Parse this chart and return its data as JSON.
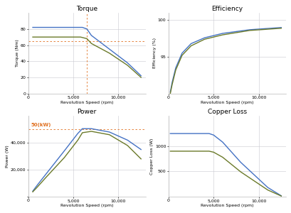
{
  "blue_color": "#4472C4",
  "green_color": "#6B7A2A",
  "orange_color": "#E07020",
  "grid_color": "#C8C8D0",
  "bg_color": "#FFFFFF",
  "torque": {
    "title": "Torque",
    "xlabel": "Revolution Speed (rpm)",
    "ylabel": "Torque (Nm)",
    "xlim": [
      0,
      13000
    ],
    "ylim": [
      0,
      100
    ],
    "xticks": [
      0,
      5000,
      10000
    ],
    "yticks": [
      0,
      20,
      40,
      60,
      80
    ],
    "blue_x": [
      500,
      1000,
      6000,
      6500,
      7000,
      9000,
      11000,
      12500
    ],
    "blue_y": [
      82,
      82,
      82,
      80,
      72,
      55,
      38,
      22
    ],
    "green_x": [
      500,
      1000,
      5800,
      6500,
      7000,
      9000,
      11000,
      12500
    ],
    "green_y": [
      70,
      70,
      70,
      68,
      62,
      50,
      35,
      20
    ],
    "ref_x": 6500,
    "ref_y": 65
  },
  "efficiency": {
    "title": "Efficiency",
    "xlabel": "Revolution Speed (rpm)",
    "ylabel": "Efficiency (%)",
    "xlim": [
      0,
      13000
    ],
    "ylim": [
      90,
      101
    ],
    "xticks": [
      0,
      5000,
      10000
    ],
    "yticks": [
      95,
      100
    ],
    "blue_x": [
      200,
      400,
      800,
      1500,
      2500,
      4000,
      6000,
      9000,
      12500
    ],
    "blue_y": [
      90.2,
      91.5,
      93.5,
      95.5,
      96.8,
      97.6,
      98.2,
      98.7,
      99.0
    ],
    "green_x": [
      200,
      400,
      800,
      1500,
      2500,
      4000,
      6000,
      9000,
      12500
    ],
    "green_y": [
      90.0,
      91.2,
      93.2,
      95.2,
      96.5,
      97.4,
      98.0,
      98.6,
      98.9
    ]
  },
  "power": {
    "title": "Power",
    "xlabel": "Revolution Speed (rpm)",
    "ylabel": "Power (W)",
    "xlim": [
      0,
      13000
    ],
    "ylim": [
      0,
      60000
    ],
    "xticks": [
      0,
      5000,
      10000
    ],
    "yticks": [
      0,
      20000,
      40000
    ],
    "blue_x": [
      500,
      1000,
      2000,
      4000,
      5500,
      6000,
      7000,
      9000,
      11000,
      12500
    ],
    "blue_y": [
      4000,
      8500,
      17000,
      34000,
      47000,
      50500,
      50500,
      48000,
      42000,
      35000
    ],
    "green_x": [
      500,
      1000,
      2000,
      4000,
      5500,
      6000,
      7000,
      9000,
      11000,
      12500
    ],
    "green_y": [
      3500,
      7000,
      14500,
      29000,
      42000,
      47500,
      48500,
      46000,
      38000,
      28000
    ],
    "ref_y": 50000,
    "ref_label": "50(kW)"
  },
  "copper_loss": {
    "title": "Copper Loss",
    "xlabel": "Revolution Speed (rpm)",
    "ylabel": "Copper Loss (W)",
    "xlim": [
      0,
      13000
    ],
    "ylim": [
      0,
      1600
    ],
    "xticks": [
      0,
      5000,
      10000
    ],
    "yticks": [
      500,
      1000
    ],
    "blue_x": [
      200,
      1000,
      4500,
      5000,
      6000,
      8000,
      11000,
      12500
    ],
    "blue_y": [
      1250,
      1250,
      1250,
      1220,
      1080,
      680,
      180,
      15
    ],
    "green_x": [
      200,
      1000,
      4500,
      5000,
      6000,
      8000,
      11000,
      12500
    ],
    "green_y": [
      900,
      900,
      900,
      880,
      780,
      490,
      130,
      10
    ]
  }
}
